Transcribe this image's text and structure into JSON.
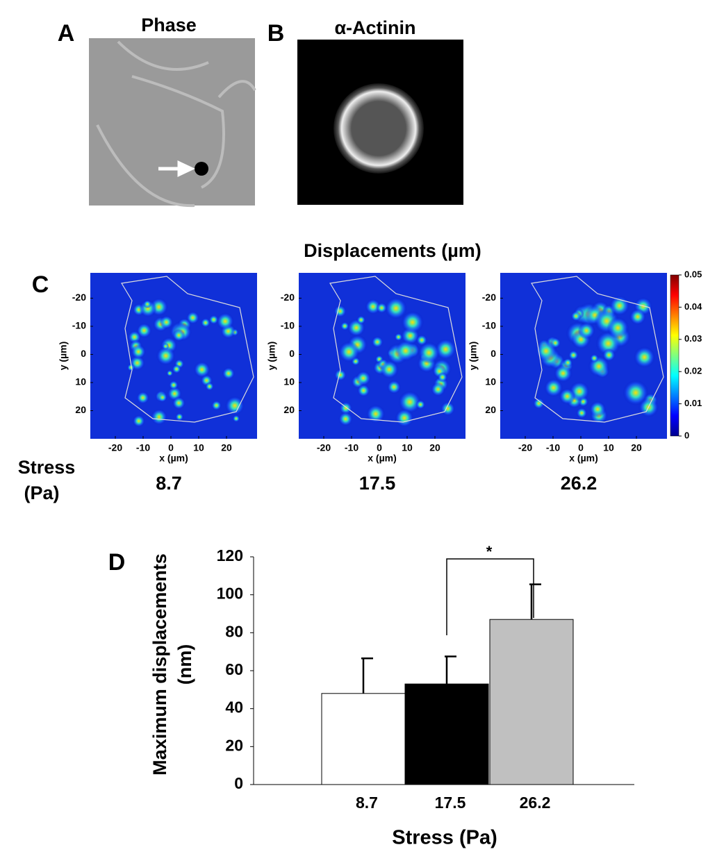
{
  "panel_labels": [
    "A",
    "B",
    "C",
    "D"
  ],
  "panel_a": {
    "title": "Phase"
  },
  "panel_b": {
    "title": "α-Actinin"
  },
  "panel_c": {
    "title": "Displacements (µm)",
    "xlabel": "x (µm)",
    "ylabel": "y (µm)",
    "xlim": [
      -29,
      31
    ],
    "ylim": [
      -29,
      30
    ],
    "xticks": [
      -20,
      -10,
      0,
      10,
      20
    ],
    "yticks": [
      -20,
      -10,
      0,
      10,
      20
    ],
    "colorbar": {
      "lim": [
        0,
        0.05
      ],
      "ticks": [
        0,
        0.01,
        0.02,
        0.03,
        0.04,
        0.05
      ]
    },
    "stress_label": [
      "Stress",
      "(Pa)"
    ],
    "stresses": [
      "8.7",
      "17.5",
      "26.2"
    ]
  },
  "chart_data": {
    "type": "bar",
    "categories": [
      "8.7",
      "17.5",
      "26.2"
    ],
    "series": [
      {
        "values": [
          48,
          53,
          87
        ],
        "errors": [
          18.5,
          14.5,
          18.5
        ],
        "colors": [
          "#ffffff",
          "#000000",
          "#c0c0c0"
        ]
      }
    ],
    "xlabel": "Stress (Pa)",
    "ylabel": [
      "Maximum displacements",
      "(nm)"
    ],
    "ylim": [
      0,
      120
    ],
    "yticks": [
      0,
      20,
      40,
      60,
      80,
      100,
      120
    ],
    "significance": "*"
  }
}
